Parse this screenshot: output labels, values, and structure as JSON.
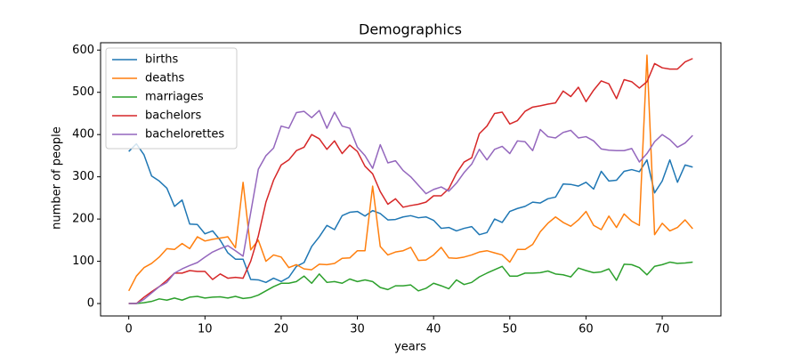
{
  "chart_data": {
    "type": "line",
    "title": "Demographics",
    "x_label": "years",
    "y_label": "number of people",
    "x": [
      0,
      1,
      2,
      3,
      4,
      5,
      6,
      7,
      8,
      9,
      10,
      11,
      12,
      13,
      14,
      15,
      16,
      17,
      18,
      19,
      20,
      21,
      22,
      23,
      24,
      25,
      26,
      27,
      28,
      29,
      30,
      31,
      32,
      33,
      34,
      35,
      36,
      37,
      38,
      39,
      40,
      41,
      42,
      43,
      44,
      45,
      46,
      47,
      48,
      49,
      50,
      51,
      52,
      53,
      54,
      55,
      56,
      57,
      58,
      59,
      60,
      61,
      62,
      63,
      64,
      65,
      66,
      67,
      68,
      69,
      70,
      71,
      72,
      73,
      74
    ],
    "series": [
      {
        "name": "births",
        "color": "#1f77b4",
        "values": [
          360,
          378,
          352,
          302,
          290,
          273,
          230,
          245,
          188,
          187,
          165,
          172,
          150,
          120,
          105,
          105,
          57,
          56,
          50,
          60,
          52,
          62,
          88,
          97,
          135,
          158,
          185,
          175,
          208,
          216,
          218,
          207,
          220,
          213,
          198,
          199,
          205,
          208,
          203,
          205,
          197,
          178,
          180,
          172,
          178,
          182,
          163,
          168,
          200,
          192,
          218,
          225,
          230,
          240,
          238,
          248,
          252,
          283,
          282,
          278,
          287,
          271,
          313,
          290,
          292,
          313,
          317,
          312,
          340,
          262,
          290,
          340,
          287,
          328,
          323
        ]
      },
      {
        "name": "deaths",
        "color": "#ff7f0e",
        "values": [
          30,
          65,
          85,
          95,
          110,
          130,
          128,
          142,
          130,
          158,
          148,
          152,
          155,
          158,
          132,
          287,
          127,
          150,
          100,
          115,
          110,
          85,
          92,
          82,
          80,
          93,
          92,
          95,
          107,
          108,
          125,
          125,
          278,
          135,
          115,
          122,
          125,
          133,
          102,
          103,
          115,
          133,
          108,
          107,
          110,
          115,
          122,
          125,
          120,
          115,
          98,
          128,
          128,
          140,
          170,
          190,
          205,
          192,
          183,
          198,
          218,
          185,
          175,
          207,
          180,
          212,
          195,
          185,
          588,
          163,
          190,
          172,
          180,
          198,
          177
        ]
      },
      {
        "name": "marriages",
        "color": "#2ca02c",
        "values": [
          0,
          0,
          2,
          5,
          11,
          8,
          13,
          8,
          15,
          17,
          13,
          15,
          16,
          13,
          17,
          12,
          14,
          20,
          30,
          40,
          48,
          48,
          52,
          65,
          48,
          70,
          50,
          52,
          48,
          58,
          52,
          56,
          52,
          38,
          33,
          42,
          42,
          44,
          30,
          36,
          48,
          42,
          35,
          56,
          45,
          50,
          63,
          72,
          80,
          88,
          65,
          65,
          72,
          72,
          73,
          77,
          70,
          68,
          63,
          84,
          78,
          73,
          75,
          82,
          55,
          93,
          92,
          85,
          68,
          88,
          92,
          98,
          95,
          96,
          98
        ]
      },
      {
        "name": "bachelors",
        "color": "#d62728",
        "values": [
          0,
          0,
          15,
          28,
          40,
          55,
          72,
          72,
          78,
          76,
          76,
          57,
          70,
          60,
          62,
          60,
          100,
          160,
          240,
          292,
          328,
          340,
          362,
          370,
          400,
          390,
          365,
          385,
          355,
          375,
          360,
          325,
          307,
          265,
          235,
          248,
          228,
          232,
          235,
          240,
          255,
          255,
          272,
          308,
          335,
          345,
          402,
          420,
          450,
          453,
          425,
          433,
          455,
          465,
          468,
          472,
          475,
          503,
          490,
          512,
          478,
          505,
          527,
          520,
          485,
          530,
          525,
          510,
          525,
          568,
          558,
          555,
          555,
          572,
          580
        ]
      },
      {
        "name": "bachelorettes",
        "color": "#9467bd",
        "values": [
          0,
          0,
          10,
          25,
          40,
          50,
          72,
          82,
          90,
          97,
          110,
          122,
          130,
          137,
          125,
          112,
          215,
          318,
          350,
          368,
          420,
          415,
          452,
          455,
          440,
          457,
          415,
          453,
          420,
          415,
          370,
          350,
          320,
          376,
          333,
          338,
          315,
          300,
          280,
          260,
          270,
          276,
          266,
          285,
          310,
          330,
          365,
          340,
          365,
          372,
          355,
          385,
          383,
          362,
          412,
          395,
          392,
          405,
          410,
          392,
          395,
          385,
          366,
          363,
          362,
          362,
          367,
          335,
          355,
          383,
          400,
          388,
          370,
          380,
          398
        ]
      }
    ],
    "xlim": [
      -3.7,
      77.7
    ],
    "ylim": [
      -29.4,
      617.4
    ],
    "xticks": [
      0,
      10,
      20,
      30,
      40,
      50,
      60,
      70
    ],
    "yticks": [
      0,
      100,
      200,
      300,
      400,
      500,
      600
    ],
    "grid": false,
    "legend": "upper-left"
  }
}
